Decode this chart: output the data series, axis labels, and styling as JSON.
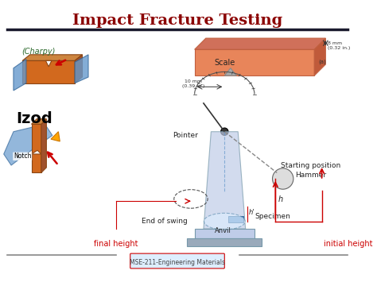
{
  "title": "Impact Fracture Testing",
  "title_color": "#8B0000",
  "title_fontsize": 14,
  "title_bold": true,
  "footer_text": "MSE-211-Engineering Materials",
  "bg_color": "#ffffff",
  "charpy_label": "(Charpy)",
  "izod_label": "Izod",
  "notch_label": "Notch",
  "scale_label": "Scale",
  "pointer_label": "Pointer",
  "starting_position_label": "Starting position",
  "hammer_label": "Hammer",
  "end_of_swing_label": "End of swing",
  "specimen_label": "Specimen",
  "anvil_label": "Anvil",
  "final_height_label": "final height",
  "initial_height_label": "initial height",
  "h_label": "h",
  "h_prime_label": "h'",
  "dim1_label": "10 mm\n(0.39 in.)",
  "dim2_label": "8 mm\n(0.32 in.)",
  "dim3_label": "(a)"
}
